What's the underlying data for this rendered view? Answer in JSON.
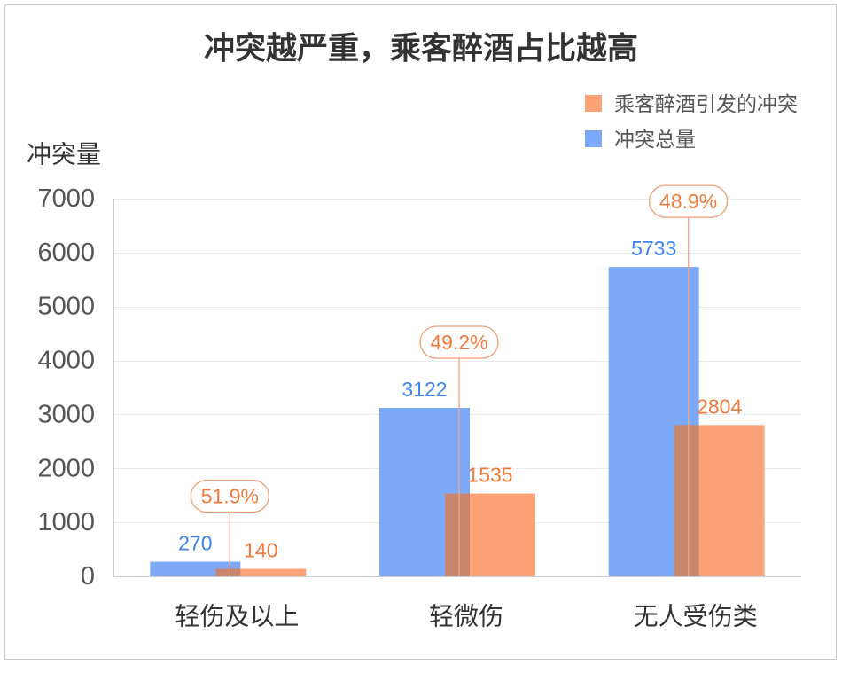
{
  "chart_data": {
    "type": "bar",
    "title": "冲突越严重，乘客醉酒占比越高",
    "ylabel": "冲突量",
    "categories": [
      "轻伤及以上",
      "轻微伤",
      "无人受伤类"
    ],
    "series": [
      {
        "name": "冲突总量",
        "values": [
          270,
          3122,
          5733
        ],
        "color": "#7BA8F7",
        "label_color": "#3D84EE"
      },
      {
        "name": "乘客醉酒引发的冲突",
        "values": [
          140,
          1535,
          2804
        ],
        "color": "#FCA277",
        "label_color": "#F07B3C"
      }
    ],
    "ratio_labels": [
      "51.9%",
      "49.2%",
      "48.9%"
    ],
    "ylim": [
      0,
      7000
    ],
    "yticks": [
      0,
      1000,
      2000,
      3000,
      4000,
      5000,
      6000,
      7000
    ],
    "grid": true,
    "legend": {
      "position": "top-right"
    }
  },
  "colors": {
    "overlap": "#C9866E",
    "ratio_text": "#F07B3C",
    "ratio_border": "#F29D74",
    "ratio_line": "#F3A580"
  }
}
